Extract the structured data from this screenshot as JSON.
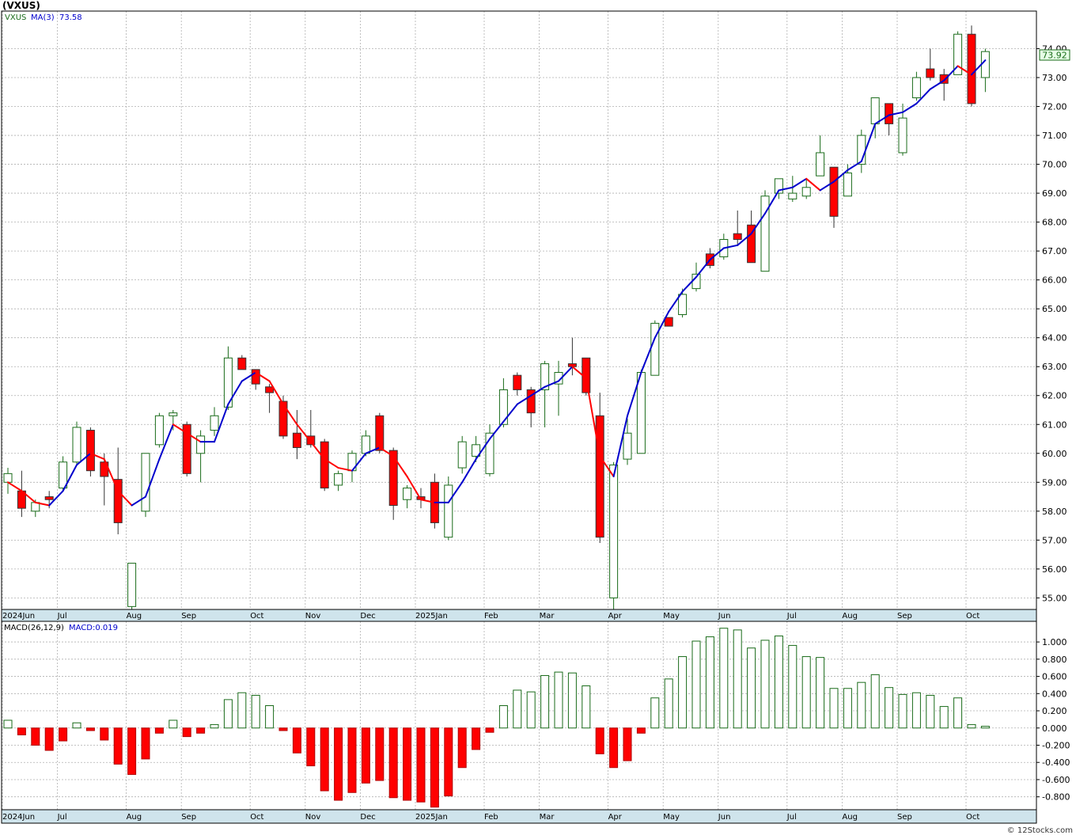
{
  "symbol_title": "(VXUS)",
  "price_legend": {
    "symbol": "VXUS",
    "ma_label": "MA(3)",
    "ma_value": "73.58",
    "last_price_label": "73.92"
  },
  "macd_legend": {
    "label": "MACD(26,12,9)",
    "value_label": "MACD:0.019"
  },
  "watermark": "© 12Stocks.com",
  "colors": {
    "up_candle": "#1a6b1a",
    "down_candle": "#ff0000",
    "ma_up": "#0000cc",
    "ma_down": "#ff0000",
    "axis_band": "#cfe4ec",
    "grid": "#b0b0b0"
  },
  "chart_data": [
    {
      "type": "candlestick",
      "title": "(VXUS)",
      "period": "weekly",
      "ylim": [
        54.6,
        75.3
      ],
      "y_ticks": [
        "55.00",
        "56.00",
        "57.00",
        "58.00",
        "59.00",
        "60.00",
        "61.00",
        "62.00",
        "63.00",
        "64.00",
        "65.00",
        "66.00",
        "67.00",
        "68.00",
        "69.00",
        "70.00",
        "71.00",
        "72.00",
        "73.00",
        "74.00"
      ],
      "x_labels": [
        "2024Jun",
        "Jul",
        "Aug",
        "Sep",
        "Oct",
        "Nov",
        "Dec",
        "2025Jan",
        "Feb",
        "Mar",
        "Apr",
        "May",
        "Jun",
        "Jul",
        "Aug",
        "Sep",
        "Oct"
      ],
      "x_label_weeks": [
        0,
        4,
        9,
        13,
        18,
        22,
        26,
        30,
        35,
        39,
        44,
        48,
        52,
        57,
        61,
        65,
        70
      ],
      "candles": [
        {
          "o": 59.0,
          "h": 59.5,
          "l": 58.6,
          "c": 59.3
        },
        {
          "o": 58.7,
          "h": 59.4,
          "l": 57.8,
          "c": 58.1
        },
        {
          "o": 58.0,
          "h": 58.4,
          "l": 57.8,
          "c": 58.3
        },
        {
          "o": 58.5,
          "h": 58.7,
          "l": 58.1,
          "c": 58.4
        },
        {
          "o": 58.8,
          "h": 59.9,
          "l": 58.7,
          "c": 59.7
        },
        {
          "o": 59.7,
          "h": 61.1,
          "l": 59.6,
          "c": 60.9
        },
        {
          "o": 60.8,
          "h": 60.9,
          "l": 59.2,
          "c": 59.4
        },
        {
          "o": 59.7,
          "h": 60.0,
          "l": 58.2,
          "c": 59.2
        },
        {
          "o": 59.1,
          "h": 60.2,
          "l": 57.2,
          "c": 57.6
        },
        {
          "o": 54.7,
          "h": 56.0,
          "l": 54.4,
          "c": 56.2
        },
        {
          "o": 58.0,
          "h": 60.0,
          "l": 57.8,
          "c": 60.0
        },
        {
          "o": 60.3,
          "h": 61.4,
          "l": 60.2,
          "c": 61.3
        },
        {
          "o": 61.3,
          "h": 61.5,
          "l": 60.8,
          "c": 61.4
        },
        {
          "o": 61.0,
          "h": 61.1,
          "l": 59.2,
          "c": 59.3
        },
        {
          "o": 60.0,
          "h": 60.8,
          "l": 59.0,
          "c": 60.6
        },
        {
          "o": 60.8,
          "h": 61.6,
          "l": 60.6,
          "c": 61.3
        },
        {
          "o": 61.6,
          "h": 63.7,
          "l": 61.5,
          "c": 63.3
        },
        {
          "o": 63.3,
          "h": 63.4,
          "l": 62.9,
          "c": 62.9
        },
        {
          "o": 62.9,
          "h": 62.9,
          "l": 62.2,
          "c": 62.4
        },
        {
          "o": 62.3,
          "h": 62.4,
          "l": 61.4,
          "c": 62.1
        },
        {
          "o": 61.8,
          "h": 62.0,
          "l": 60.5,
          "c": 60.6
        },
        {
          "o": 60.7,
          "h": 61.5,
          "l": 59.8,
          "c": 60.2
        },
        {
          "o": 60.6,
          "h": 61.5,
          "l": 60.2,
          "c": 60.3
        },
        {
          "o": 60.4,
          "h": 60.5,
          "l": 58.7,
          "c": 58.8
        },
        {
          "o": 58.9,
          "h": 59.4,
          "l": 58.7,
          "c": 59.3
        },
        {
          "o": 59.4,
          "h": 60.1,
          "l": 59.0,
          "c": 60.0
        },
        {
          "o": 60.0,
          "h": 60.8,
          "l": 59.9,
          "c": 60.6
        },
        {
          "o": 61.3,
          "h": 61.4,
          "l": 60.0,
          "c": 60.1
        },
        {
          "o": 60.1,
          "h": 60.2,
          "l": 57.7,
          "c": 58.2
        },
        {
          "o": 58.4,
          "h": 58.9,
          "l": 58.1,
          "c": 58.8
        },
        {
          "o": 58.5,
          "h": 58.8,
          "l": 58.1,
          "c": 58.4
        },
        {
          "o": 59.0,
          "h": 59.3,
          "l": 57.4,
          "c": 57.6
        },
        {
          "o": 57.1,
          "h": 59.2,
          "l": 57.0,
          "c": 58.9
        },
        {
          "o": 59.5,
          "h": 60.6,
          "l": 59.3,
          "c": 60.4
        },
        {
          "o": 59.9,
          "h": 60.6,
          "l": 59.7,
          "c": 60.3
        },
        {
          "o": 59.3,
          "h": 61.0,
          "l": 59.2,
          "c": 60.7
        },
        {
          "o": 61.0,
          "h": 62.6,
          "l": 60.9,
          "c": 62.2
        },
        {
          "o": 62.7,
          "h": 62.8,
          "l": 62.0,
          "c": 62.2
        },
        {
          "o": 62.2,
          "h": 62.3,
          "l": 60.9,
          "c": 61.4
        },
        {
          "o": 62.2,
          "h": 63.2,
          "l": 60.9,
          "c": 63.1
        },
        {
          "o": 62.4,
          "h": 63.2,
          "l": 61.3,
          "c": 62.8
        },
        {
          "o": 63.1,
          "h": 64.0,
          "l": 62.7,
          "c": 63.0
        },
        {
          "o": 63.3,
          "h": 63.3,
          "l": 62.0,
          "c": 62.1
        },
        {
          "o": 61.3,
          "h": 62.1,
          "l": 56.9,
          "c": 57.1
        },
        {
          "o": 55.0,
          "h": 59.7,
          "l": 54.5,
          "c": 59.6
        },
        {
          "o": 59.8,
          "h": 61.2,
          "l": 59.6,
          "c": 60.7
        },
        {
          "o": 60.0,
          "h": 62.9,
          "l": 60.2,
          "c": 62.8
        },
        {
          "o": 62.7,
          "h": 64.6,
          "l": 62.7,
          "c": 64.5
        },
        {
          "o": 64.7,
          "h": 64.7,
          "l": 64.4,
          "c": 64.4
        },
        {
          "o": 64.8,
          "h": 65.7,
          "l": 64.7,
          "c": 65.5
        },
        {
          "o": 65.7,
          "h": 66.6,
          "l": 65.6,
          "c": 66.2
        },
        {
          "o": 66.9,
          "h": 67.1,
          "l": 66.4,
          "c": 66.5
        },
        {
          "o": 66.8,
          "h": 67.6,
          "l": 66.7,
          "c": 67.4
        },
        {
          "o": 67.6,
          "h": 68.4,
          "l": 67.2,
          "c": 67.4
        },
        {
          "o": 67.9,
          "h": 68.4,
          "l": 66.6,
          "c": 66.6
        },
        {
          "o": 66.3,
          "h": 69.1,
          "l": 66.3,
          "c": 68.9
        },
        {
          "o": 69.0,
          "h": 69.5,
          "l": 68.8,
          "c": 69.5
        },
        {
          "o": 68.8,
          "h": 69.6,
          "l": 68.7,
          "c": 69.0
        },
        {
          "o": 68.9,
          "h": 69.5,
          "l": 68.8,
          "c": 69.2
        },
        {
          "o": 69.6,
          "h": 71.0,
          "l": 69.6,
          "c": 70.4
        },
        {
          "o": 69.9,
          "h": 69.9,
          "l": 67.8,
          "c": 68.2
        },
        {
          "o": 68.9,
          "h": 70.0,
          "l": 68.9,
          "c": 69.7
        },
        {
          "o": 70.0,
          "h": 71.2,
          "l": 69.7,
          "c": 71.0
        },
        {
          "o": 71.4,
          "h": 72.2,
          "l": 70.9,
          "c": 72.3
        },
        {
          "o": 72.1,
          "h": 72.1,
          "l": 71.0,
          "c": 71.4
        },
        {
          "o": 70.4,
          "h": 72.1,
          "l": 70.3,
          "c": 71.6
        },
        {
          "o": 72.3,
          "h": 73.2,
          "l": 72.2,
          "c": 73.0
        },
        {
          "o": 73.3,
          "h": 74.0,
          "l": 72.9,
          "c": 73.0
        },
        {
          "o": 73.1,
          "h": 73.3,
          "l": 72.2,
          "c": 72.8
        },
        {
          "o": 73.1,
          "h": 74.6,
          "l": 73.1,
          "c": 74.5
        },
        {
          "o": 74.5,
          "h": 74.8,
          "l": 72.0,
          "c": 72.1
        },
        {
          "o": 73.0,
          "h": 74.0,
          "l": 72.5,
          "c": 73.9
        }
      ],
      "ma3": [
        59.0,
        58.7,
        58.3,
        58.2,
        58.7,
        59.6,
        60.0,
        59.8,
        58.7,
        58.2,
        58.5,
        59.8,
        61.0,
        60.7,
        60.4,
        60.4,
        61.7,
        62.5,
        62.8,
        62.5,
        61.7,
        61.0,
        60.4,
        59.8,
        59.5,
        59.4,
        60.0,
        60.2,
        59.9,
        59.2,
        58.4,
        58.3,
        58.3,
        59.0,
        59.8,
        60.5,
        61.1,
        61.7,
        62.0,
        62.3,
        62.5,
        63.0,
        62.6,
        59.9,
        59.2,
        61.3,
        62.8,
        64.0,
        64.9,
        65.6,
        66.1,
        66.7,
        67.1,
        67.2,
        67.6,
        68.3,
        69.1,
        69.2,
        69.5,
        69.1,
        69.4,
        69.8,
        70.1,
        71.4,
        71.7,
        71.8,
        72.1,
        72.6,
        72.9,
        73.4,
        73.1,
        73.6
      ]
    },
    {
      "type": "bar",
      "title": "MACD(26,12,9)",
      "ylim": [
        -0.95,
        1.24
      ],
      "y_ticks": [
        "-0.800",
        "-0.600",
        "-0.400",
        "-0.200",
        "0.000",
        "0.200",
        "0.400",
        "0.600",
        "0.800",
        "1.000"
      ],
      "x_labels": [
        "2024Jun",
        "Jul",
        "Aug",
        "Sep",
        "Oct",
        "Nov",
        "Dec",
        "2025Jan",
        "Feb",
        "Mar",
        "Apr",
        "May",
        "Jun",
        "Jul",
        "Aug",
        "Sep",
        "Oct"
      ],
      "x_label_weeks": [
        0,
        4,
        9,
        13,
        18,
        22,
        26,
        30,
        35,
        39,
        44,
        48,
        52,
        57,
        61,
        65,
        70
      ],
      "values": [
        0.09,
        -0.08,
        -0.2,
        -0.26,
        -0.15,
        0.06,
        -0.03,
        -0.14,
        -0.42,
        -0.54,
        -0.36,
        -0.06,
        0.09,
        -0.1,
        -0.06,
        0.04,
        0.33,
        0.41,
        0.38,
        0.26,
        -0.03,
        -0.29,
        -0.44,
        -0.73,
        -0.84,
        -0.75,
        -0.64,
        -0.61,
        -0.81,
        -0.84,
        -0.86,
        -0.92,
        -0.79,
        -0.46,
        -0.25,
        -0.05,
        0.26,
        0.44,
        0.42,
        0.61,
        0.65,
        0.64,
        0.49,
        -0.3,
        -0.46,
        -0.38,
        -0.06,
        0.35,
        0.57,
        0.83,
        1.01,
        1.06,
        1.16,
        1.14,
        0.93,
        1.02,
        1.07,
        0.96,
        0.83,
        0.82,
        0.46,
        0.46,
        0.53,
        0.62,
        0.47,
        0.39,
        0.41,
        0.38,
        0.25,
        0.35,
        0.04,
        0.02
      ]
    }
  ]
}
